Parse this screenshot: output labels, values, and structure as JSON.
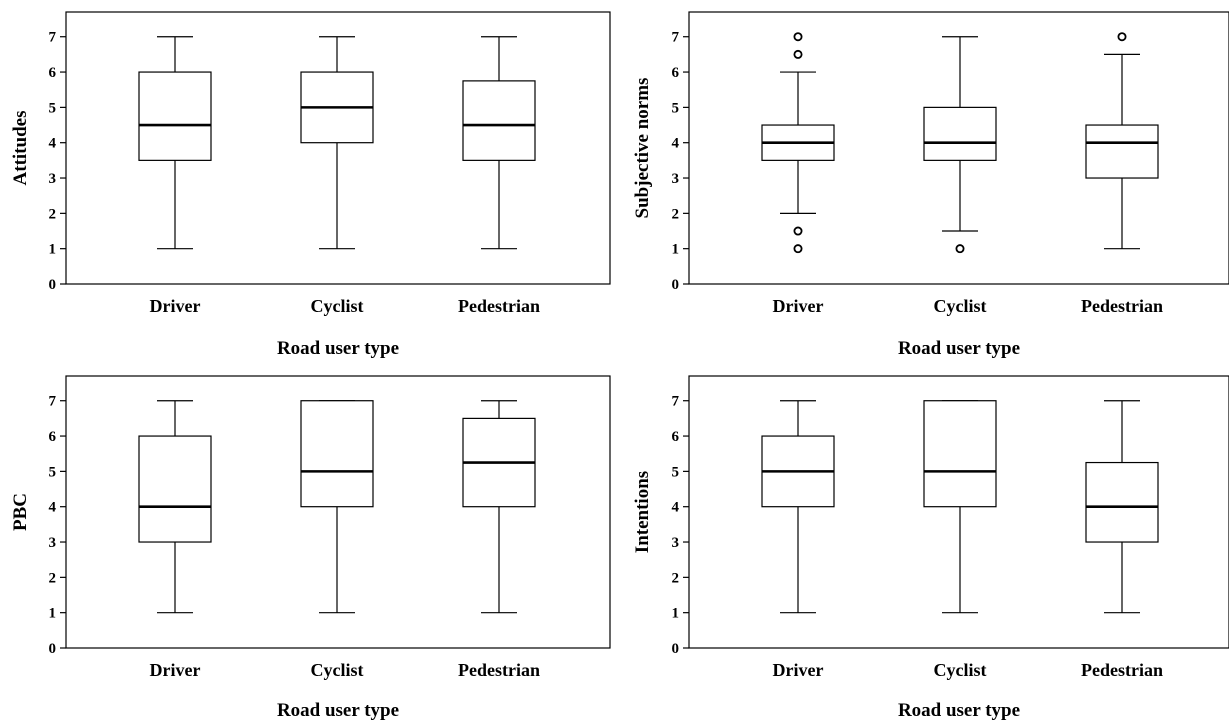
{
  "chart_data": [
    {
      "type": "boxplot",
      "xlabel": "Road user type",
      "ylabel": "Attitudes",
      "categories": [
        "Driver",
        "Cyclist",
        "Pedestrian"
      ],
      "yticks": [
        0,
        1,
        2,
        3,
        4,
        5,
        6,
        7
      ],
      "ylim": [
        0,
        7.7
      ],
      "grid": false,
      "boxes": [
        {
          "category": "Driver",
          "min": 1,
          "q1": 3.5,
          "median": 4.5,
          "q3": 6,
          "max": 7,
          "outliers": []
        },
        {
          "category": "Cyclist",
          "min": 1,
          "q1": 4,
          "median": 5,
          "q3": 6,
          "max": 7,
          "outliers": []
        },
        {
          "category": "Pedestrian",
          "min": 1,
          "q1": 3.5,
          "median": 4.5,
          "q3": 5.75,
          "max": 7,
          "outliers": []
        }
      ]
    },
    {
      "type": "boxplot",
      "xlabel": "Road user type",
      "ylabel": "Subjective norms",
      "categories": [
        "Driver",
        "Cyclist",
        "Pedestrian"
      ],
      "yticks": [
        0,
        1,
        2,
        3,
        4,
        5,
        6,
        7
      ],
      "ylim": [
        0,
        7.7
      ],
      "grid": false,
      "boxes": [
        {
          "category": "Driver",
          "min": 2,
          "q1": 3.5,
          "median": 4,
          "q3": 4.5,
          "max": 6,
          "outliers": [
            1,
            1.5,
            6.5,
            7
          ]
        },
        {
          "category": "Cyclist",
          "min": 1.5,
          "q1": 3.5,
          "median": 4,
          "q3": 5,
          "max": 7,
          "outliers": [
            1
          ]
        },
        {
          "category": "Pedestrian",
          "min": 1,
          "q1": 3,
          "median": 4,
          "q3": 4.5,
          "max": 6.5,
          "outliers": [
            7
          ]
        }
      ]
    },
    {
      "type": "boxplot",
      "xlabel": "Road user type",
      "ylabel": "PBC",
      "categories": [
        "Driver",
        "Cyclist",
        "Pedestrian"
      ],
      "yticks": [
        0,
        1,
        2,
        3,
        4,
        5,
        6,
        7
      ],
      "ylim": [
        0,
        7.7
      ],
      "grid": false,
      "boxes": [
        {
          "category": "Driver",
          "min": 1,
          "q1": 3,
          "median": 4,
          "q3": 6,
          "max": 7,
          "outliers": []
        },
        {
          "category": "Cyclist",
          "min": 1,
          "q1": 4,
          "median": 5,
          "q3": 7,
          "max": 7,
          "outliers": []
        },
        {
          "category": "Pedestrian",
          "min": 1,
          "q1": 4,
          "median": 5.25,
          "q3": 6.5,
          "max": 7,
          "outliers": []
        }
      ]
    },
    {
      "type": "boxplot",
      "xlabel": "Road user type",
      "ylabel": "Intentions",
      "categories": [
        "Driver",
        "Cyclist",
        "Pedestrian"
      ],
      "yticks": [
        0,
        1,
        2,
        3,
        4,
        5,
        6,
        7
      ],
      "ylim": [
        0,
        7.7
      ],
      "grid": false,
      "boxes": [
        {
          "category": "Driver",
          "min": 1,
          "q1": 4,
          "median": 5,
          "q3": 6,
          "max": 7,
          "outliers": []
        },
        {
          "category": "Cyclist",
          "min": 1,
          "q1": 4,
          "median": 5,
          "q3": 7,
          "max": 7,
          "outliers": []
        },
        {
          "category": "Pedestrian",
          "min": 1,
          "q1": 3,
          "median": 4,
          "q3": 5.25,
          "max": 7,
          "outliers": []
        }
      ]
    }
  ]
}
